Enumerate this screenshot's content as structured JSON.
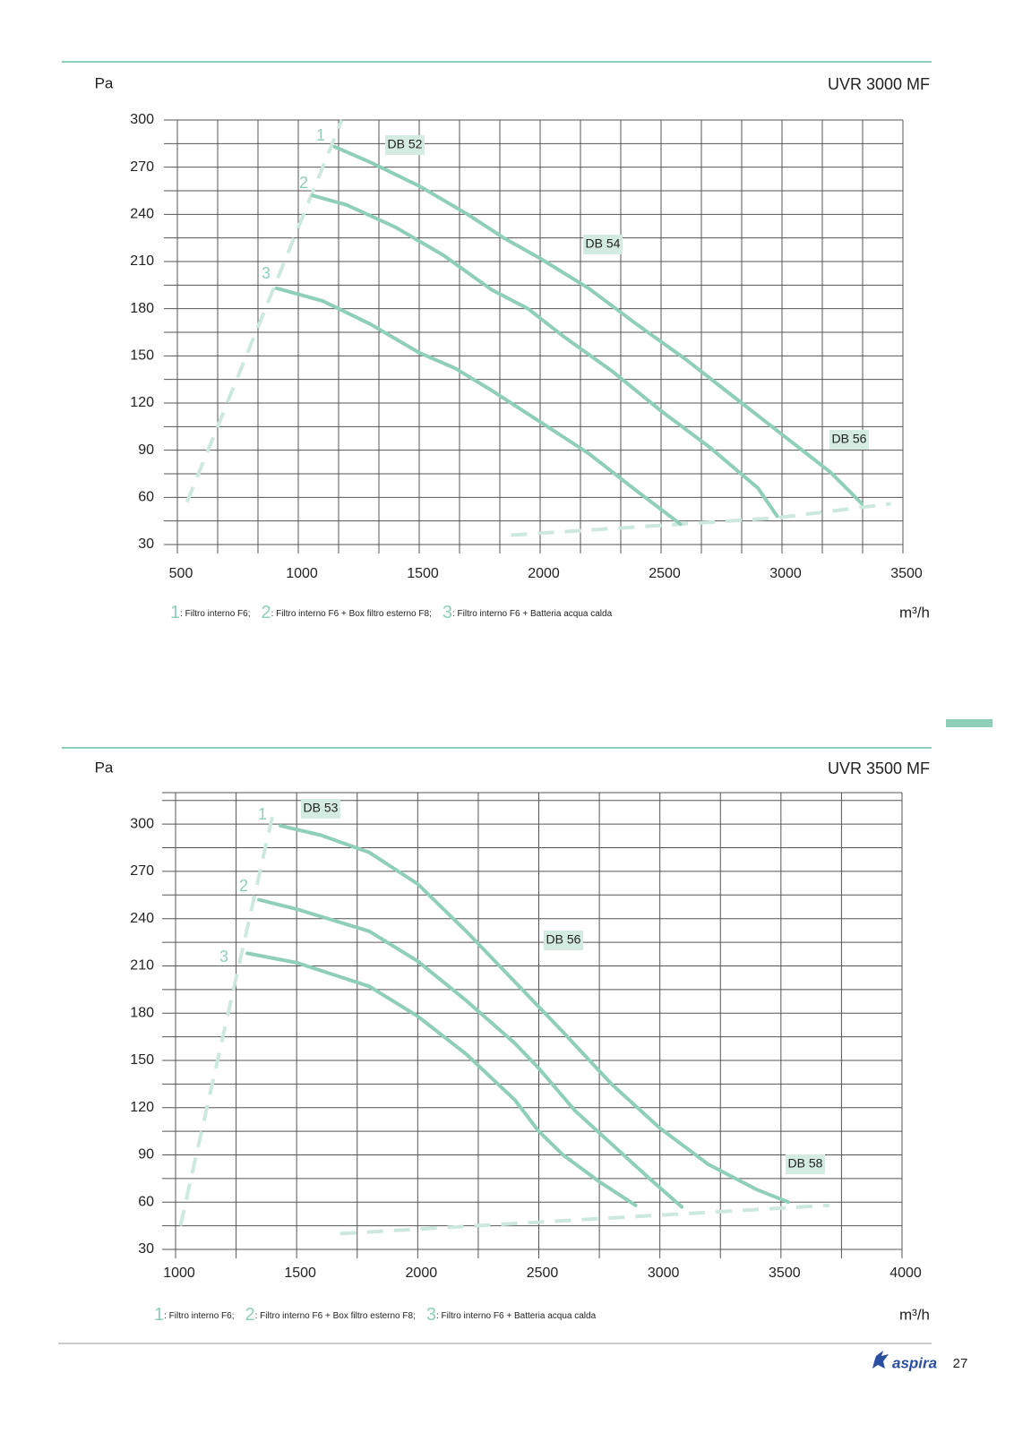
{
  "chart_data": [
    {
      "type": "line",
      "title": "UVR 3000 MF",
      "y_label": "Pa",
      "x_label": "m³/h",
      "xlim": [
        500,
        3500
      ],
      "xticks": [
        500,
        1000,
        1500,
        2000,
        2500,
        3000,
        3500
      ],
      "ylim": [
        30,
        300
      ],
      "yticks": [
        30,
        60,
        90,
        120,
        150,
        180,
        210,
        240,
        270,
        300
      ],
      "grid": true,
      "series": [
        {
          "name": "1",
          "description": ": Filtro interno F6;",
          "color": "#8fcfb8",
          "x": [
            1150,
            1300,
            1500,
            1700,
            1850,
            2000,
            2200,
            2400,
            2600,
            2800,
            3000,
            3200,
            3330
          ],
          "values": [
            283,
            273,
            258,
            240,
            225,
            212,
            193,
            170,
            148,
            124,
            100,
            76,
            56
          ]
        },
        {
          "name": "2",
          "description": ": Filtro interno F6 + Box filtro esterno F8;",
          "color": "#8fcfb8",
          "x": [
            1060,
            1200,
            1400,
            1600,
            1800,
            1950,
            2100,
            2300,
            2500,
            2700,
            2900,
            2980
          ],
          "values": [
            252,
            246,
            232,
            214,
            192,
            180,
            162,
            140,
            115,
            92,
            66,
            48
          ]
        },
        {
          "name": "3",
          "description": ": Filtro interno F6 + Batteria acqua calda",
          "color": "#8fcfb8",
          "x": [
            910,
            1100,
            1300,
            1500,
            1650,
            1800,
            2000,
            2200,
            2400,
            2580
          ],
          "values": [
            193,
            185,
            170,
            152,
            142,
            128,
            108,
            88,
            64,
            43
          ]
        }
      ],
      "limits": [
        {
          "color": "#cde8dd",
          "x": [
            540,
            1180
          ],
          "values": [
            57,
            300
          ]
        },
        {
          "color": "#cde8dd",
          "x": [
            1880,
            2980,
            3450
          ],
          "values": [
            36,
            47,
            56
          ]
        }
      ],
      "annotations": [
        "DB 52",
        "DB 54",
        "DB 56"
      ]
    },
    {
      "type": "line",
      "title": "UVR 3500 MF",
      "y_label": "Pa",
      "x_label": "m³/h",
      "xlim": [
        1000,
        4000
      ],
      "xticks": [
        1000,
        1500,
        2000,
        2500,
        3000,
        3500,
        4000
      ],
      "ylim": [
        30,
        320
      ],
      "yticks": [
        30,
        60,
        90,
        120,
        150,
        180,
        210,
        240,
        270,
        300
      ],
      "grid": true,
      "series": [
        {
          "name": "1",
          "description": ": Filtro interno F6;",
          "color": "#8fcfb8",
          "x": [
            1433,
            1600,
            1800,
            2000,
            2200,
            2400,
            2600,
            2800,
            3000,
            3200,
            3400,
            3530
          ],
          "values": [
            299,
            293,
            282,
            262,
            232,
            200,
            168,
            135,
            107,
            84,
            68,
            60
          ]
        },
        {
          "name": "2",
          "description": ": Filtro interno F6 + Box filtro esterno F8;",
          "color": "#8fcfb8",
          "x": [
            1344,
            1500,
            1800,
            2000,
            2200,
            2400,
            2500,
            2650,
            2800,
            2950,
            3090
          ],
          "values": [
            252,
            246,
            232,
            213,
            188,
            161,
            145,
            118,
            97,
            76,
            57
          ]
        },
        {
          "name": "3",
          "description": ": Filtro interno F6 + Batteria acqua calda",
          "color": "#8fcfb8",
          "x": [
            1296,
            1500,
            1800,
            2000,
            2200,
            2400,
            2500,
            2600,
            2750,
            2900
          ],
          "values": [
            218,
            212,
            197,
            178,
            154,
            125,
            105,
            90,
            73,
            58
          ]
        }
      ],
      "limits": [
        {
          "color": "#cde8dd",
          "x": [
            1020,
            1400
          ],
          "values": [
            45,
            305
          ]
        },
        {
          "color": "#cde8dd",
          "x": [
            1680,
            3700
          ],
          "values": [
            40,
            58
          ]
        }
      ],
      "annotations": [
        "DB 53",
        "DB 56",
        "DB 58"
      ]
    }
  ],
  "footer": {
    "brand": "aspira",
    "page": "27"
  }
}
